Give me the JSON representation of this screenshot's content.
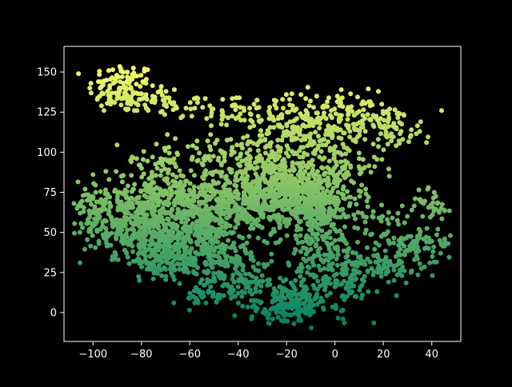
{
  "chart_data": {
    "type": "scatter",
    "title": "",
    "xlabel": "",
    "ylabel": "",
    "xlim": [
      -112,
      52
    ],
    "ylim": [
      -18,
      166
    ],
    "xticks": [
      -100,
      -80,
      -60,
      -40,
      -20,
      0,
      20,
      40
    ],
    "yticks": [
      0,
      25,
      50,
      75,
      100,
      125,
      150
    ],
    "xtick_labels": [
      "−100",
      "−80",
      "−60",
      "−40",
      "−20",
      "0",
      "20",
      "40"
    ],
    "ytick_labels": [
      "0",
      "25",
      "50",
      "75",
      "100",
      "125",
      "150"
    ],
    "grid": false,
    "legend": "none",
    "background": "#000000",
    "axis_color": "#ffffff",
    "colormap": "summer",
    "color_encodes": "y",
    "clusters": [
      {
        "cx": -88,
        "cy": 140,
        "sx": 7,
        "sy": 8,
        "n": 120
      },
      {
        "cx": -75,
        "cy": 132,
        "sx": 6,
        "sy": 5,
        "n": 40
      },
      {
        "cx": -60,
        "cy": 128,
        "sx": 6,
        "sy": 4,
        "n": 20
      },
      {
        "cx": -42,
        "cy": 125,
        "sx": 6,
        "sy": 6,
        "n": 40
      },
      {
        "cx": -25,
        "cy": 122,
        "sx": 8,
        "sy": 6,
        "n": 50
      },
      {
        "cx": -10,
        "cy": 115,
        "sx": 10,
        "sy": 10,
        "n": 150
      },
      {
        "cx": 5,
        "cy": 122,
        "sx": 6,
        "sy": 8,
        "n": 50
      },
      {
        "cx": 20,
        "cy": 118,
        "sx": 8,
        "sy": 6,
        "n": 80
      },
      {
        "cx": 28,
        "cy": 108,
        "sx": 5,
        "sy": 3,
        "n": 15
      },
      {
        "cx": -75,
        "cy": 95,
        "sx": 6,
        "sy": 5,
        "n": 35
      },
      {
        "cx": -45,
        "cy": 100,
        "sx": 10,
        "sy": 5,
        "n": 50
      },
      {
        "cx": -30,
        "cy": 95,
        "sx": 12,
        "sy": 8,
        "n": 100
      },
      {
        "cx": 0,
        "cy": 90,
        "sx": 10,
        "sy": 8,
        "n": 80
      },
      {
        "cx": -100,
        "cy": 70,
        "sx": 6,
        "sy": 10,
        "n": 70
      },
      {
        "cx": -85,
        "cy": 55,
        "sx": 10,
        "sy": 10,
        "n": 300
      },
      {
        "cx": -70,
        "cy": 75,
        "sx": 10,
        "sy": 8,
        "n": 180
      },
      {
        "cx": -60,
        "cy": 55,
        "sx": 10,
        "sy": 12,
        "n": 300
      },
      {
        "cx": -40,
        "cy": 70,
        "sx": 12,
        "sy": 10,
        "n": 350
      },
      {
        "cx": -20,
        "cy": 75,
        "sx": 10,
        "sy": 10,
        "n": 350
      },
      {
        "cx": -5,
        "cy": 65,
        "sx": 8,
        "sy": 12,
        "n": 250
      },
      {
        "cx": -70,
        "cy": 35,
        "sx": 10,
        "sy": 8,
        "n": 150
      },
      {
        "cx": -50,
        "cy": 35,
        "sx": 10,
        "sy": 8,
        "n": 150
      },
      {
        "cx": -40,
        "cy": 20,
        "sx": 8,
        "sy": 6,
        "n": 80
      },
      {
        "cx": -55,
        "cy": 10,
        "sx": 5,
        "sy": 4,
        "n": 30
      },
      {
        "cx": -20,
        "cy": 5,
        "sx": 8,
        "sy": 6,
        "n": 150
      },
      {
        "cx": -5,
        "cy": 30,
        "sx": 8,
        "sy": 12,
        "n": 150
      },
      {
        "cx": -10,
        "cy": 10,
        "sx": 10,
        "sy": 8,
        "n": 60
      },
      {
        "cx": 5,
        "cy": 20,
        "sx": 6,
        "sy": 6,
        "n": 40
      },
      {
        "cx": 20,
        "cy": 30,
        "sx": 8,
        "sy": 6,
        "n": 80
      },
      {
        "cx": 35,
        "cy": 40,
        "sx": 6,
        "sy": 5,
        "n": 50
      },
      {
        "cx": 40,
        "cy": 65,
        "sx": 5,
        "sy": 7,
        "n": 40
      },
      {
        "cx": 20,
        "cy": 60,
        "sx": 5,
        "sy": 3,
        "n": 20
      },
      {
        "cx": 30,
        "cy": 45,
        "sx": 8,
        "sy": 4,
        "n": 40
      }
    ]
  }
}
